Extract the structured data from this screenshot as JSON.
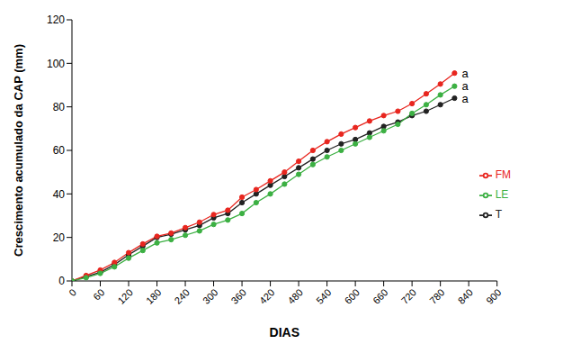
{
  "chart_data": {
    "type": "line",
    "x_label": "DIAS",
    "y_label": "Crescimento acumulado da CAP (mm)",
    "x": [
      0,
      30,
      60,
      90,
      120,
      150,
      180,
      210,
      240,
      270,
      300,
      330,
      360,
      390,
      420,
      450,
      480,
      510,
      540,
      570,
      600,
      630,
      660,
      690,
      720,
      750,
      780,
      810
    ],
    "series": [
      {
        "name": "T",
        "color": "#222222",
        "marker": "circle",
        "values": [
          0,
          2,
          4,
          7.5,
          12,
          16,
          20,
          21.5,
          23.5,
          25.5,
          29,
          31,
          36,
          40,
          44,
          48,
          52,
          56,
          60,
          63,
          65,
          68,
          71,
          73,
          76,
          78,
          81,
          84
        ]
      },
      {
        "name": "FM",
        "color": "#e8261f",
        "marker": "circle",
        "values": [
          0,
          2.5,
          5,
          8.5,
          13,
          17,
          20.5,
          22,
          24.5,
          27,
          30.5,
          32.5,
          38.5,
          42,
          46,
          50,
          55,
          60,
          64,
          67.5,
          70.5,
          73.5,
          76,
          78,
          81.5,
          86,
          90.5,
          95.5
        ]
      },
      {
        "name": "LE",
        "color": "#3cb043",
        "marker": "circle",
        "values": [
          0,
          1.5,
          3.5,
          6.5,
          10.5,
          14,
          17.5,
          19,
          21,
          23,
          26,
          28,
          31,
          36,
          40,
          44.5,
          49,
          53.5,
          57,
          60,
          63,
          66,
          69,
          72,
          77,
          81,
          85.5,
          89.5
        ]
      }
    ],
    "annotations": [
      {
        "text": "a",
        "x": 810,
        "y": 95.5
      },
      {
        "text": "a",
        "x": 810,
        "y": 89.5
      },
      {
        "text": "a",
        "x": 810,
        "y": 84
      }
    ],
    "xlim": [
      0,
      900
    ],
    "xticks": [
      0,
      60,
      120,
      180,
      240,
      300,
      360,
      420,
      480,
      540,
      600,
      660,
      720,
      780,
      840,
      900
    ],
    "ylim": [
      0,
      120
    ],
    "yticks": [
      0,
      20,
      40,
      60,
      80,
      100,
      120
    ],
    "grid": false,
    "legend": "lower right"
  }
}
